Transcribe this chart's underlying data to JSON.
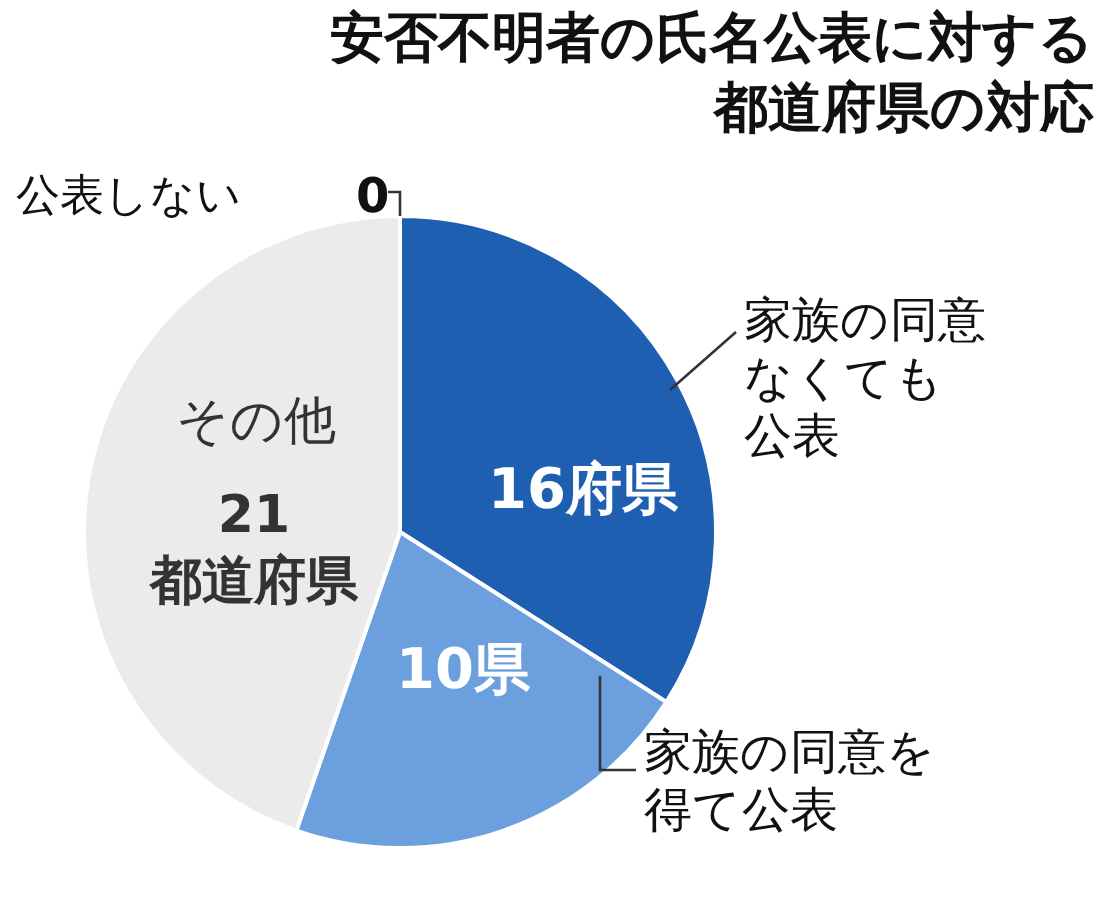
{
  "chart_data": {
    "type": "pie",
    "title": "安否不明者の氏名公表に対する都道府県の対応",
    "categories": [
      "家族の同意なくても公表",
      "家族の同意を得て公表",
      "その他",
      "公表しない"
    ],
    "values": [
      16,
      10,
      21,
      0
    ],
    "colors": [
      "#1f5fb2",
      "#6c9fdd",
      "#ebebeb",
      "#ebebeb"
    ],
    "value_labels": [
      "16府県",
      "10県",
      "21\n都道府県",
      "0"
    ],
    "legend": false
  }
}
